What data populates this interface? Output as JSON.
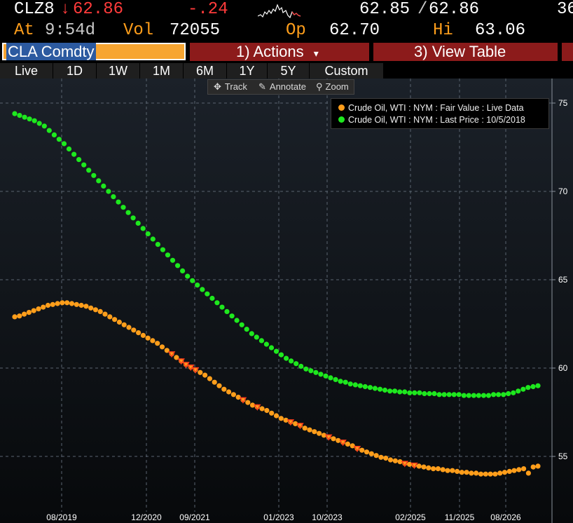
{
  "header": {
    "ticker": "CLZ8",
    "last_arrow": "↓",
    "last_price": "62.86",
    "change": "-.24",
    "bid_ask": "62.85",
    "bid_ask_sep": "/",
    "ask": "62.86",
    "overflow": "36",
    "time_label": "At",
    "time": "9:54d",
    "vol_label": "Vol",
    "vol": "72055",
    "open_label": "Op",
    "open": "62.70",
    "high_label": "Hi",
    "high": "63.06"
  },
  "command_bar": {
    "security": "CLA Comdty",
    "actions_num": "1)",
    "actions_label": "Actions",
    "actions_caret": "▾",
    "view_num": "3)",
    "view_label": "View Table"
  },
  "tabs": [
    {
      "label": "Live",
      "active": true
    },
    {
      "label": "1D",
      "active": false
    },
    {
      "label": "1W",
      "active": false
    },
    {
      "label": "1M",
      "active": true
    },
    {
      "label": "6M",
      "active": false
    },
    {
      "label": "1Y",
      "active": false
    },
    {
      "label": "5Y",
      "active": false
    },
    {
      "label": "Custom",
      "active": false
    }
  ],
  "tools": {
    "track": "Track",
    "annotate": "Annotate",
    "zoom": "Zoom"
  },
  "colors": {
    "fair_value": "#ff9e1b",
    "last_price": "#1ee81e",
    "grid": "#5a6470",
    "axis_text": "#ffffff",
    "down_marker": "#ff3b1b"
  },
  "chart_data": {
    "type": "scatter",
    "title": "",
    "xlabel": "",
    "ylabel": "",
    "x_tick_labels": [
      "08/2019",
      "12/2020",
      "09/2021",
      "01/2023",
      "10/2023",
      "02/2025",
      "11/2025",
      "08/2026"
    ],
    "y_ticks": [
      55,
      60,
      65,
      70,
      75
    ],
    "ylim": [
      52.5,
      76.2
    ],
    "grid": true,
    "legend_position": "top-right",
    "series": [
      {
        "name": "Crude Oil, WTI : NYM : Fair Value : Live Data",
        "marker": "circle",
        "values": [
          62.9,
          62.95,
          63.05,
          63.15,
          63.25,
          63.35,
          63.45,
          63.55,
          63.6,
          63.65,
          63.7,
          63.7,
          63.65,
          63.6,
          63.55,
          63.5,
          63.4,
          63.3,
          63.2,
          63.05,
          62.9,
          62.75,
          62.6,
          62.45,
          62.3,
          62.15,
          62.0,
          61.85,
          61.7,
          61.55,
          61.4,
          61.2,
          61.0,
          60.8,
          60.6,
          60.4,
          60.2,
          60.05,
          59.9,
          59.75,
          59.6,
          59.4,
          59.2,
          59.0,
          58.8,
          58.65,
          58.5,
          58.35,
          58.2,
          58.05,
          57.9,
          57.8,
          57.7,
          57.6,
          57.45,
          57.3,
          57.15,
          57.05,
          56.95,
          56.85,
          56.75,
          56.6,
          56.5,
          56.4,
          56.3,
          56.2,
          56.1,
          56.0,
          55.9,
          55.8,
          55.7,
          55.6,
          55.45,
          55.35,
          55.25,
          55.15,
          55.05,
          54.95,
          54.9,
          54.8,
          54.75,
          54.7,
          54.6,
          54.55,
          54.5,
          54.45,
          54.4,
          54.35,
          54.3,
          54.3,
          54.25,
          54.2,
          54.2,
          54.15,
          54.1,
          54.1,
          54.05,
          54.05,
          54.0,
          54.0,
          54.0,
          54.0,
          54.05,
          54.1,
          54.15,
          54.2,
          54.25,
          54.3,
          54.05,
          54.4,
          54.45
        ]
      },
      {
        "name": "Crude Oil, WTI : NYM : Last Price : 10/5/2018",
        "marker": "circle",
        "values": [
          74.4,
          74.3,
          74.2,
          74.1,
          74.0,
          73.85,
          73.7,
          73.45,
          73.2,
          72.95,
          72.7,
          72.4,
          72.1,
          71.8,
          71.5,
          71.2,
          70.9,
          70.6,
          70.3,
          70.0,
          69.7,
          69.4,
          69.1,
          68.8,
          68.5,
          68.2,
          67.9,
          67.6,
          67.3,
          67.0,
          66.7,
          66.4,
          66.1,
          65.8,
          65.5,
          65.2,
          64.95,
          64.7,
          64.45,
          64.2,
          63.95,
          63.7,
          63.45,
          63.2,
          62.95,
          62.7,
          62.45,
          62.2,
          61.95,
          61.75,
          61.55,
          61.35,
          61.15,
          60.95,
          60.75,
          60.55,
          60.4,
          60.25,
          60.1,
          59.95,
          59.85,
          59.75,
          59.65,
          59.55,
          59.45,
          59.35,
          59.25,
          59.2,
          59.1,
          59.05,
          59.0,
          58.95,
          58.9,
          58.85,
          58.8,
          58.75,
          58.7,
          58.7,
          58.65,
          58.65,
          58.6,
          58.6,
          58.6,
          58.55,
          58.55,
          58.55,
          58.5,
          58.5,
          58.5,
          58.5,
          58.5,
          58.45,
          58.45,
          58.45,
          58.45,
          58.45,
          58.45,
          58.5,
          58.5,
          58.5,
          58.55,
          58.6,
          58.7,
          58.8,
          58.9,
          58.95,
          59.0
        ]
      }
    ],
    "down_markers_series": "Crude Oil, WTI : NYM : Fair Value : Live Data"
  }
}
